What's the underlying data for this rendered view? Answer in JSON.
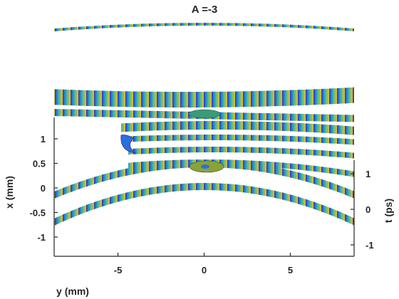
{
  "chart_data": {
    "type": "surface-3d",
    "title": "A =-3",
    "xlabel": "y (mm)",
    "ylabel": "x (mm)",
    "zlabel": "t (ps)",
    "y_axis_ticks": [
      -5,
      0,
      5
    ],
    "x_axis_ticks": [
      1,
      0.5,
      0,
      -0.5,
      -1
    ],
    "t_axis_ticks": [
      1,
      0,
      -1
    ],
    "xlim": [
      -8.7,
      8.7
    ],
    "ylim": [
      -1.4,
      1.4
    ],
    "tlim": [
      -1.5,
      1.5
    ],
    "colormap": [
      "#3a2a9e",
      "#2a6fe0",
      "#1fa6c8",
      "#5cbf8a",
      "#b8b640",
      "#e3c22e"
    ],
    "grid": false
  }
}
